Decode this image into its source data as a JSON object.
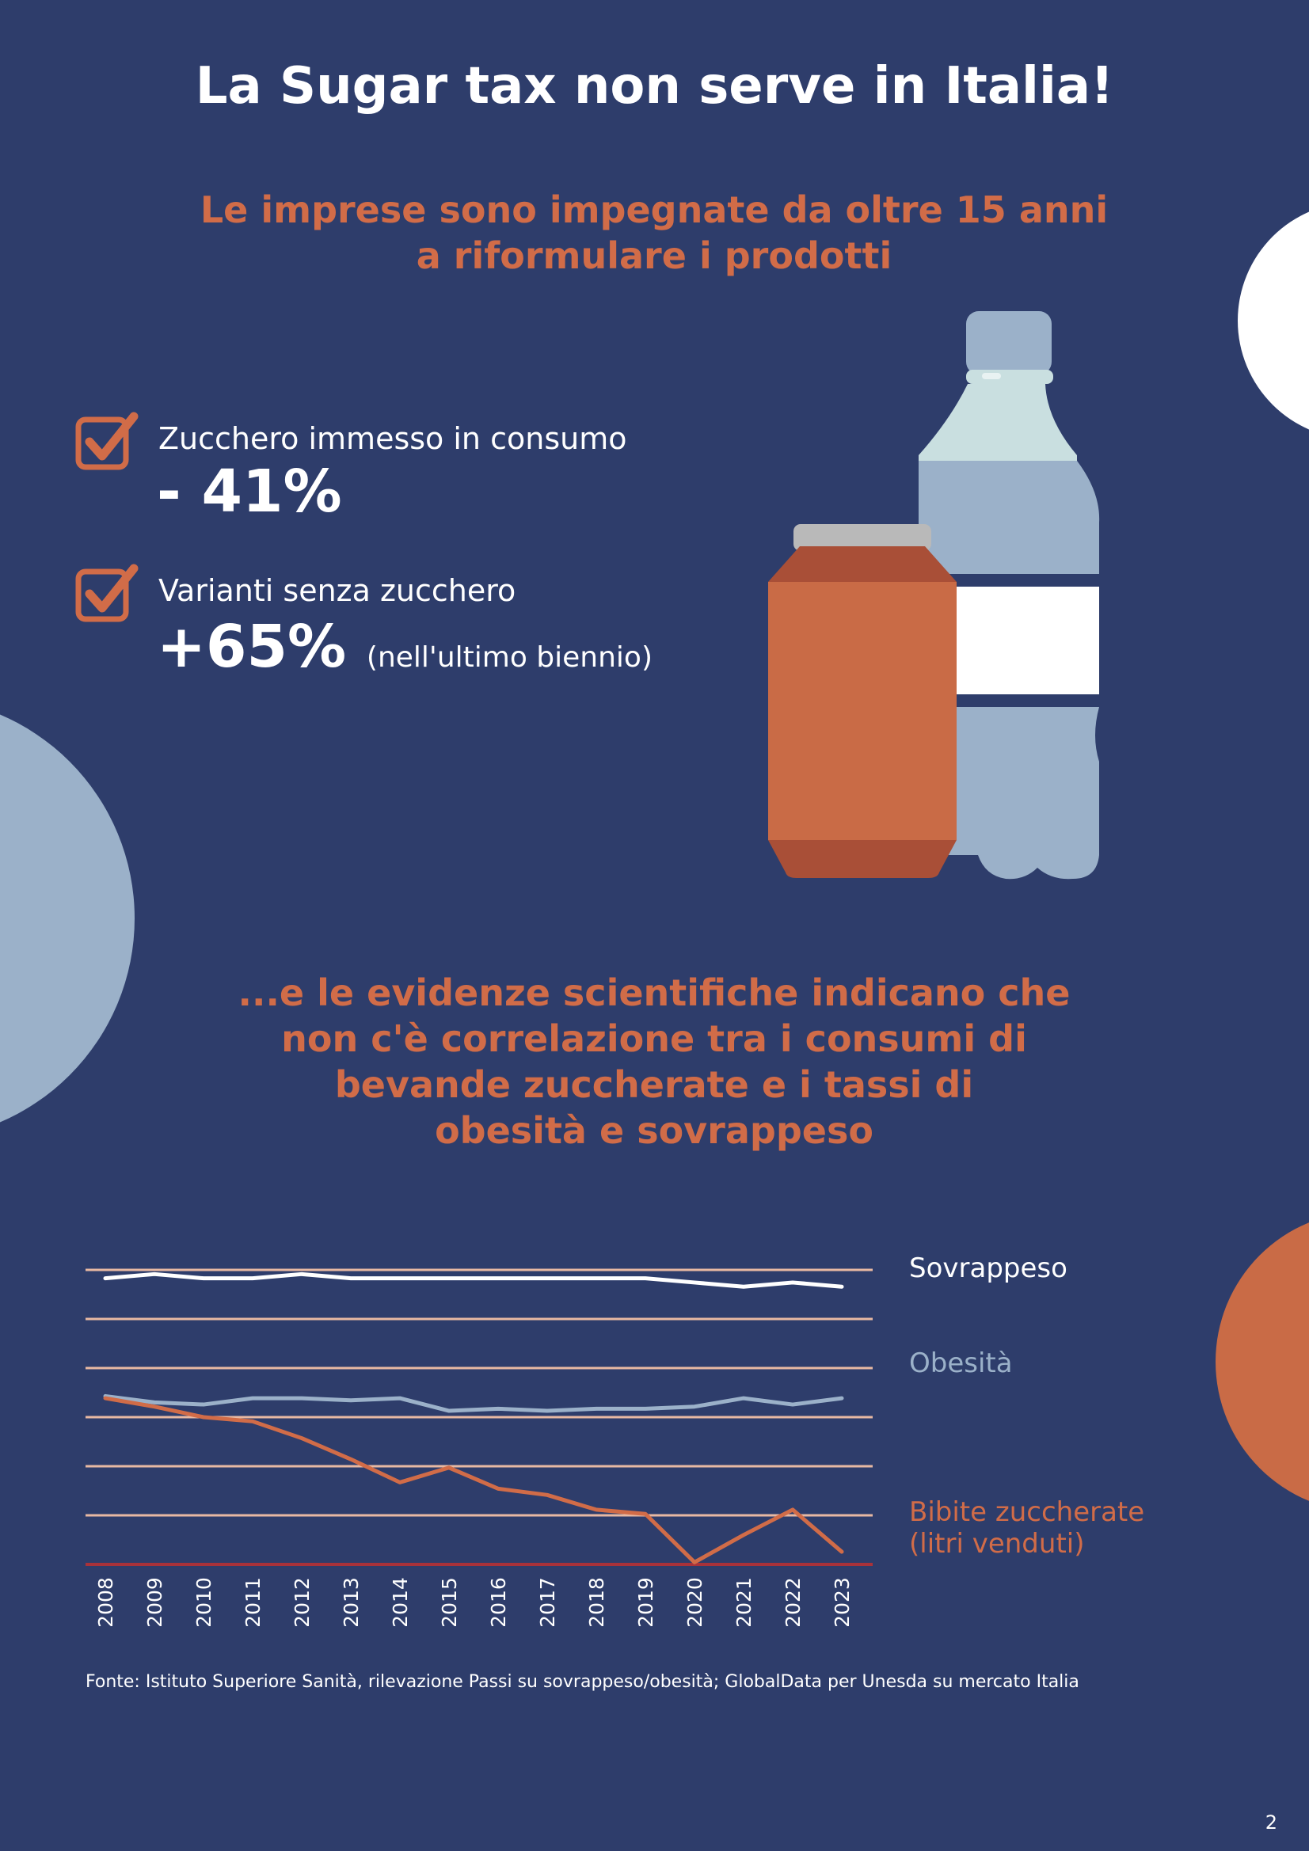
{
  "title": "La Sugar tax non serve in Italia!",
  "subtitle_top": [
    "Le imprese sono impegnate da oltre 15 anni",
    "a riformulare i prodotti"
  ],
  "stats": [
    {
      "label": "Zucchero immesso in consumo",
      "value": "- 41%",
      "note": ""
    },
    {
      "label": "Varianti senza zucchero",
      "value": "+65%",
      "note": "(nell'ultimo biennio)"
    }
  ],
  "subtitle_mid": [
    "...e le evidenze scientifiche indicano che",
    "non c'è correlazione tra i consumi di",
    "bevande zuccherate e i tassi di",
    "obesità e sovrappeso"
  ],
  "colors": {
    "background": "#2e3d6b",
    "accent": "#d16c48",
    "light_blue": "#9bb1c9",
    "white": "#ffffff",
    "grid": "#e8b9a3",
    "baseline": "#a8323a"
  },
  "icons": {
    "check": "checkbox-check-icon",
    "can": "soda-can-icon",
    "bottle": "water-bottle-icon"
  },
  "chart_data": {
    "type": "line",
    "x": [
      "2008",
      "2009",
      "2010",
      "2011",
      "2012",
      "2013",
      "2014",
      "2015",
      "2016",
      "2017",
      "2018",
      "2019",
      "2020",
      "2021",
      "2022",
      "2023"
    ],
    "series": [
      {
        "name": "Sovrappeso",
        "color": "#ffffff",
        "values": [
          6.8,
          6.9,
          6.8,
          6.8,
          6.9,
          6.8,
          6.8,
          6.8,
          6.8,
          6.8,
          6.8,
          6.8,
          6.7,
          6.6,
          6.7,
          6.6
        ]
      },
      {
        "name": "Obesità",
        "color": "#9bb1c9",
        "values": [
          4.0,
          3.85,
          3.8,
          3.95,
          3.95,
          3.9,
          3.95,
          3.65,
          3.7,
          3.65,
          3.7,
          3.7,
          3.75,
          3.95,
          3.8,
          3.95
        ]
      },
      {
        "name": "Bibite zuccherate\n(litri venduti)",
        "color": "#d16c48",
        "values": [
          3.95,
          3.75,
          3.5,
          3.4,
          3.0,
          2.5,
          1.95,
          2.3,
          1.8,
          1.65,
          1.3,
          1.2,
          0.05,
          0.7,
          1.3,
          0.3
        ]
      }
    ],
    "legend": [
      "Sovrappeso",
      "Obesità",
      "Bibite zuccherate",
      "(litri venduti)"
    ],
    "ylim": [
      0,
      7
    ],
    "grid": true,
    "legend_placement": "right",
    "source": "Fonte: Istituto Superiore Sanità, rilevazione Passi su sovrappeso/obesità; GlobalData per Unesda su mercato Italia"
  },
  "page_number": "2"
}
